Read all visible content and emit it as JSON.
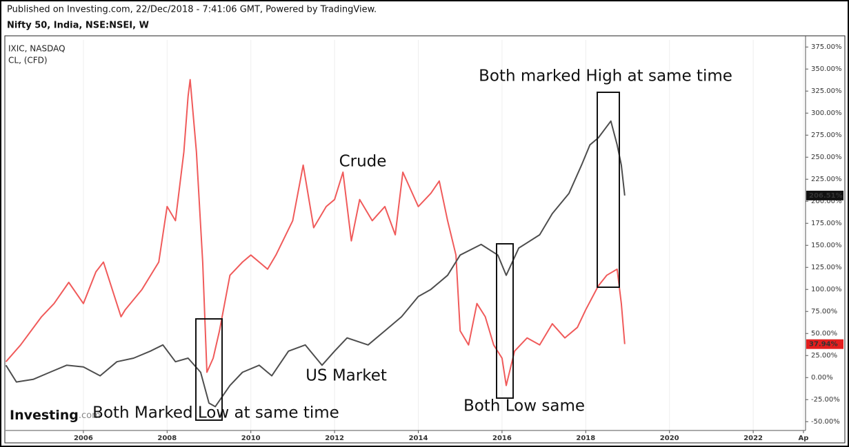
{
  "published": "Published on Investing.com, 22/Dec/2018 - 7:41:06 GMT, Powered by TradingView.",
  "logo": [
    "Investing",
    ".com"
  ],
  "chart_data": {
    "type": "line",
    "title": "Nifty 50, India, NSE:NSEI, W",
    "xlim": [
      2004.14,
      2023.25
    ],
    "xticks": [
      2006,
      2008,
      2010,
      2012,
      2014,
      2016,
      2018,
      2020,
      2022,
      {
        "value": 2023.2,
        "label": "Ap"
      }
    ],
    "ylim": [
      -60,
      383
    ],
    "yticks": [
      {
        "value": -50,
        "label": "-50.00%"
      },
      {
        "value": -25,
        "label": "-25.00%"
      },
      {
        "value": 0,
        "label": "0.00%"
      },
      {
        "value": 25,
        "label": "25.00%"
      },
      {
        "value": 50,
        "label": "50.00%"
      },
      {
        "value": 75,
        "label": "75.00%"
      },
      {
        "value": 100,
        "label": "100.00%"
      },
      {
        "value": 125,
        "label": "125.00%"
      },
      {
        "value": 150,
        "label": "150.00%"
      },
      {
        "value": 175,
        "label": "175.00%"
      },
      {
        "value": 200,
        "label": "200.00%"
      },
      {
        "value": 225,
        "label": "225.00%"
      },
      {
        "value": 250,
        "label": "250.00%"
      },
      {
        "value": 275,
        "label": "275.00%"
      },
      {
        "value": 300,
        "label": "300.00%"
      },
      {
        "value": 325,
        "label": "325.00%"
      },
      {
        "value": 350,
        "label": "350.00%"
      },
      {
        "value": 375,
        "label": "375.00%"
      }
    ],
    "xgrid": true,
    "series": [
      {
        "name": "IXIC, NASDAQ",
        "color": "#4d4d4d",
        "last_label": "206.51%",
        "x": [
          2004.15,
          2004.4,
          2004.8,
          2005.2,
          2005.6,
          2006.0,
          2006.4,
          2006.8,
          2007.2,
          2007.6,
          2007.9,
          2008.2,
          2008.5,
          2008.8,
          2009.0,
          2009.15,
          2009.5,
          2009.8,
          2010.2,
          2010.5,
          2010.9,
          2011.3,
          2011.7,
          2012.0,
          2012.3,
          2012.8,
          2013.2,
          2013.6,
          2014.0,
          2014.3,
          2014.7,
          2015.0,
          2015.5,
          2015.9,
          2016.1,
          2016.4,
          2016.9,
          2017.2,
          2017.6,
          2017.9,
          2018.1,
          2018.3,
          2018.6,
          2018.75,
          2018.85,
          2018.93
        ],
        "values": [
          14,
          -5,
          -2,
          6,
          14,
          12,
          2,
          18,
          22,
          30,
          37,
          18,
          22,
          6,
          -29,
          -33,
          -9,
          6,
          14,
          2,
          30,
          37,
          14,
          30,
          45,
          37,
          53,
          69,
          92,
          100,
          116,
          139,
          151,
          139,
          116,
          147,
          162,
          186,
          209,
          241,
          264,
          272,
          291,
          264,
          241,
          206.51
        ]
      },
      {
        "name": "CL,  (CFD)",
        "color": "#f05a5a",
        "last_label": "37.94%",
        "x": [
          2004.15,
          2004.5,
          2005.0,
          2005.3,
          2005.65,
          2006.0,
          2006.3,
          2006.48,
          2006.9,
          2007.0,
          2007.4,
          2007.8,
          2008.0,
          2008.2,
          2008.4,
          2008.5,
          2008.55,
          2008.7,
          2008.85,
          2008.95,
          2009.1,
          2009.25,
          2009.5,
          2009.8,
          2010.0,
          2010.4,
          2010.6,
          2011.0,
          2011.25,
          2011.5,
          2011.8,
          2012.0,
          2012.2,
          2012.4,
          2012.6,
          2012.9,
          2013.2,
          2013.45,
          2013.63,
          2014.0,
          2014.3,
          2014.5,
          2014.7,
          2014.9,
          2015.0,
          2015.2,
          2015.4,
          2015.6,
          2015.8,
          2016.0,
          2016.1,
          2016.3,
          2016.6,
          2016.9,
          2017.2,
          2017.5,
          2017.8,
          2018.0,
          2018.3,
          2018.5,
          2018.75,
          2018.85,
          2018.93
        ],
        "values": [
          18,
          37,
          69,
          84,
          108,
          84,
          120,
          131,
          69,
          77,
          100,
          131,
          194,
          178,
          256,
          319,
          338,
          256,
          131,
          6,
          22,
          53,
          116,
          131,
          139,
          123,
          139,
          178,
          241,
          170,
          194,
          202,
          233,
          155,
          202,
          178,
          194,
          162,
          233,
          194,
          209,
          223,
          178,
          139,
          53,
          37,
          84,
          69,
          37,
          22,
          -9,
          30,
          45,
          37,
          61,
          45,
          57,
          77,
          104,
          116,
          123,
          84,
          37.94
        ]
      }
    ],
    "annotations": [
      "Both marked High at same time",
      "Crude",
      "US Market",
      "Both Low same",
      "Both Marked Low at same time"
    ]
  }
}
